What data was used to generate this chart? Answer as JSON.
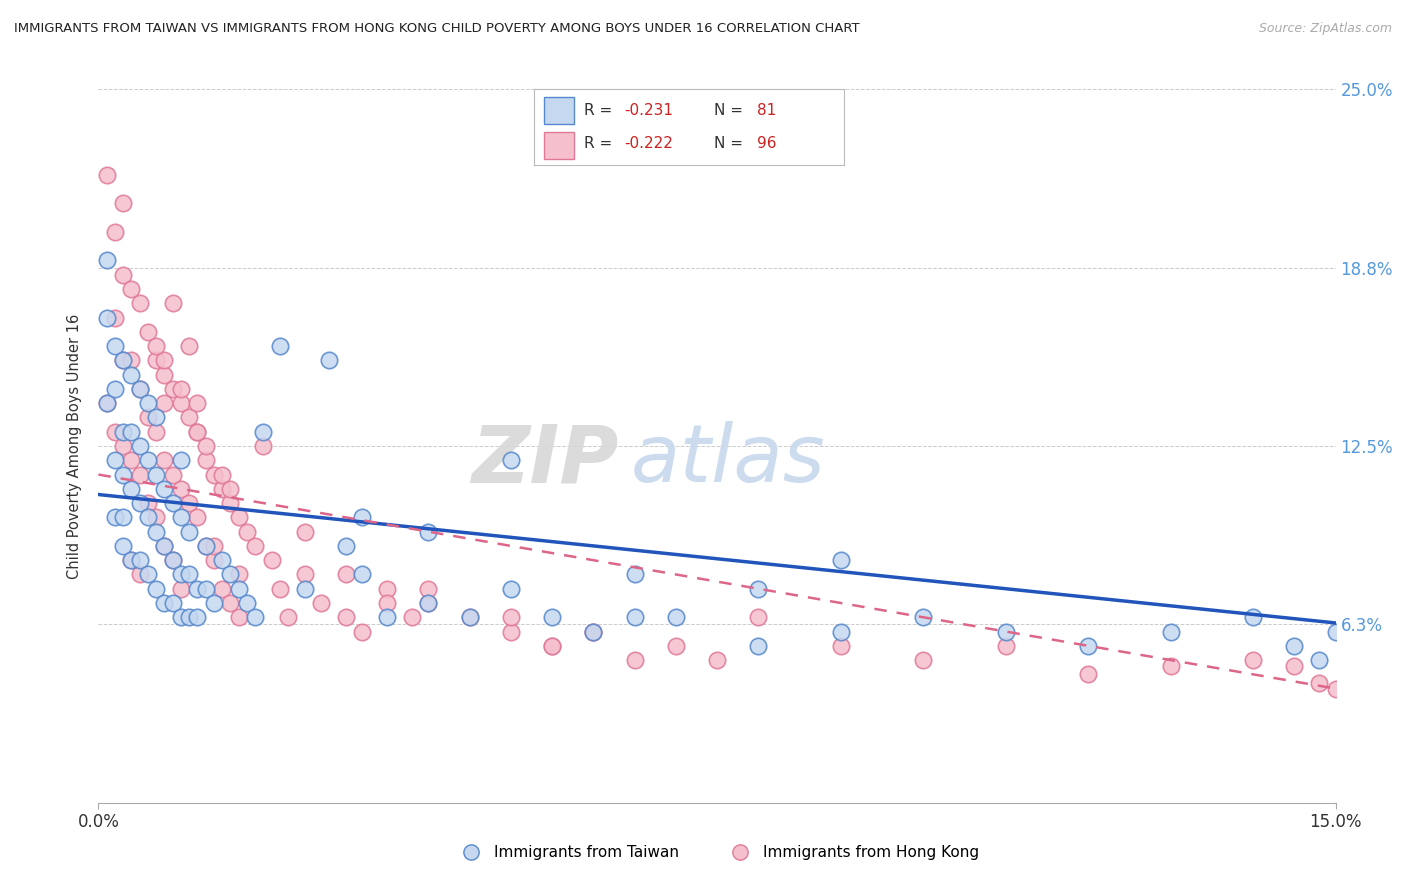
{
  "title": "IMMIGRANTS FROM TAIWAN VS IMMIGRANTS FROM HONG KONG CHILD POVERTY AMONG BOYS UNDER 16 CORRELATION CHART",
  "source": "Source: ZipAtlas.com",
  "ylabel": "Child Poverty Among Boys Under 16",
  "xmin": 0.0,
  "xmax": 0.15,
  "ymin": 0.0,
  "ymax": 0.25,
  "yticks": [
    0.0,
    0.0625,
    0.125,
    0.1875,
    0.25
  ],
  "ytick_labels": [
    "",
    "6.3%",
    "12.5%",
    "18.8%",
    "25.0%"
  ],
  "xticks": [
    0.0,
    0.15
  ],
  "xtick_labels": [
    "0.0%",
    "15.0%"
  ],
  "taiwan_color": "#c5d8f0",
  "taiwan_edge": "#5588cc",
  "hk_color": "#f5bfcc",
  "hk_edge": "#e07898",
  "taiwan_R": -0.231,
  "taiwan_N": 81,
  "hk_R": -0.222,
  "hk_N": 96,
  "taiwan_line_color": "#2255bb",
  "hk_line_color": "#dd6688",
  "taiwan_line_y0": 0.108,
  "taiwan_line_y1": 0.063,
  "hk_line_y0": 0.115,
  "hk_line_y1": 0.04,
  "taiwan_scatter_x": [
    0.001,
    0.001,
    0.001,
    0.002,
    0.002,
    0.002,
    0.002,
    0.003,
    0.003,
    0.003,
    0.003,
    0.003,
    0.004,
    0.004,
    0.004,
    0.004,
    0.005,
    0.005,
    0.005,
    0.005,
    0.006,
    0.006,
    0.006,
    0.006,
    0.007,
    0.007,
    0.007,
    0.007,
    0.008,
    0.008,
    0.008,
    0.009,
    0.009,
    0.009,
    0.01,
    0.01,
    0.01,
    0.01,
    0.011,
    0.011,
    0.011,
    0.012,
    0.012,
    0.013,
    0.013,
    0.014,
    0.015,
    0.016,
    0.017,
    0.018,
    0.019,
    0.02,
    0.022,
    0.025,
    0.028,
    0.03,
    0.032,
    0.035,
    0.04,
    0.045,
    0.05,
    0.055,
    0.06,
    0.065,
    0.07,
    0.08,
    0.09,
    0.1,
    0.11,
    0.12,
    0.13,
    0.14,
    0.145,
    0.148,
    0.15,
    0.032,
    0.04,
    0.05,
    0.065,
    0.08,
    0.09
  ],
  "taiwan_scatter_y": [
    0.14,
    0.17,
    0.19,
    0.1,
    0.12,
    0.145,
    0.16,
    0.09,
    0.115,
    0.13,
    0.155,
    0.1,
    0.085,
    0.11,
    0.13,
    0.15,
    0.085,
    0.105,
    0.125,
    0.145,
    0.08,
    0.1,
    0.12,
    0.14,
    0.075,
    0.095,
    0.115,
    0.135,
    0.07,
    0.09,
    0.11,
    0.07,
    0.085,
    0.105,
    0.065,
    0.08,
    0.1,
    0.12,
    0.065,
    0.08,
    0.095,
    0.065,
    0.075,
    0.075,
    0.09,
    0.07,
    0.085,
    0.08,
    0.075,
    0.07,
    0.065,
    0.13,
    0.16,
    0.075,
    0.155,
    0.09,
    0.08,
    0.065,
    0.07,
    0.065,
    0.075,
    0.065,
    0.06,
    0.065,
    0.065,
    0.055,
    0.06,
    0.065,
    0.06,
    0.055,
    0.06,
    0.065,
    0.055,
    0.05,
    0.06,
    0.1,
    0.095,
    0.12,
    0.08,
    0.075,
    0.085
  ],
  "hk_scatter_x": [
    0.001,
    0.001,
    0.002,
    0.002,
    0.002,
    0.003,
    0.003,
    0.003,
    0.003,
    0.004,
    0.004,
    0.004,
    0.004,
    0.005,
    0.005,
    0.005,
    0.005,
    0.006,
    0.006,
    0.006,
    0.007,
    0.007,
    0.007,
    0.008,
    0.008,
    0.008,
    0.008,
    0.009,
    0.009,
    0.009,
    0.01,
    0.01,
    0.01,
    0.011,
    0.011,
    0.012,
    0.012,
    0.012,
    0.013,
    0.013,
    0.014,
    0.014,
    0.015,
    0.015,
    0.016,
    0.016,
    0.017,
    0.017,
    0.018,
    0.019,
    0.02,
    0.021,
    0.022,
    0.023,
    0.025,
    0.027,
    0.03,
    0.032,
    0.035,
    0.038,
    0.04,
    0.045,
    0.05,
    0.055,
    0.06,
    0.065,
    0.07,
    0.075,
    0.08,
    0.09,
    0.1,
    0.11,
    0.12,
    0.13,
    0.14,
    0.145,
    0.148,
    0.15,
    0.025,
    0.03,
    0.035,
    0.04,
    0.05,
    0.055,
    0.06,
    0.007,
    0.008,
    0.009,
    0.01,
    0.011,
    0.012,
    0.013,
    0.014,
    0.015,
    0.016,
    0.017
  ],
  "hk_scatter_y": [
    0.14,
    0.22,
    0.17,
    0.2,
    0.13,
    0.185,
    0.155,
    0.125,
    0.21,
    0.18,
    0.155,
    0.12,
    0.085,
    0.175,
    0.145,
    0.115,
    0.08,
    0.165,
    0.135,
    0.105,
    0.155,
    0.13,
    0.1,
    0.15,
    0.12,
    0.09,
    0.155,
    0.145,
    0.115,
    0.085,
    0.14,
    0.11,
    0.075,
    0.135,
    0.105,
    0.13,
    0.1,
    0.14,
    0.12,
    0.09,
    0.115,
    0.085,
    0.11,
    0.075,
    0.105,
    0.07,
    0.1,
    0.065,
    0.095,
    0.09,
    0.125,
    0.085,
    0.075,
    0.065,
    0.08,
    0.07,
    0.065,
    0.06,
    0.075,
    0.065,
    0.07,
    0.065,
    0.06,
    0.055,
    0.06,
    0.05,
    0.055,
    0.05,
    0.065,
    0.055,
    0.05,
    0.055,
    0.045,
    0.048,
    0.05,
    0.048,
    0.042,
    0.04,
    0.095,
    0.08,
    0.07,
    0.075,
    0.065,
    0.055,
    0.06,
    0.16,
    0.14,
    0.175,
    0.145,
    0.16,
    0.13,
    0.125,
    0.09,
    0.115,
    0.11,
    0.08
  ]
}
